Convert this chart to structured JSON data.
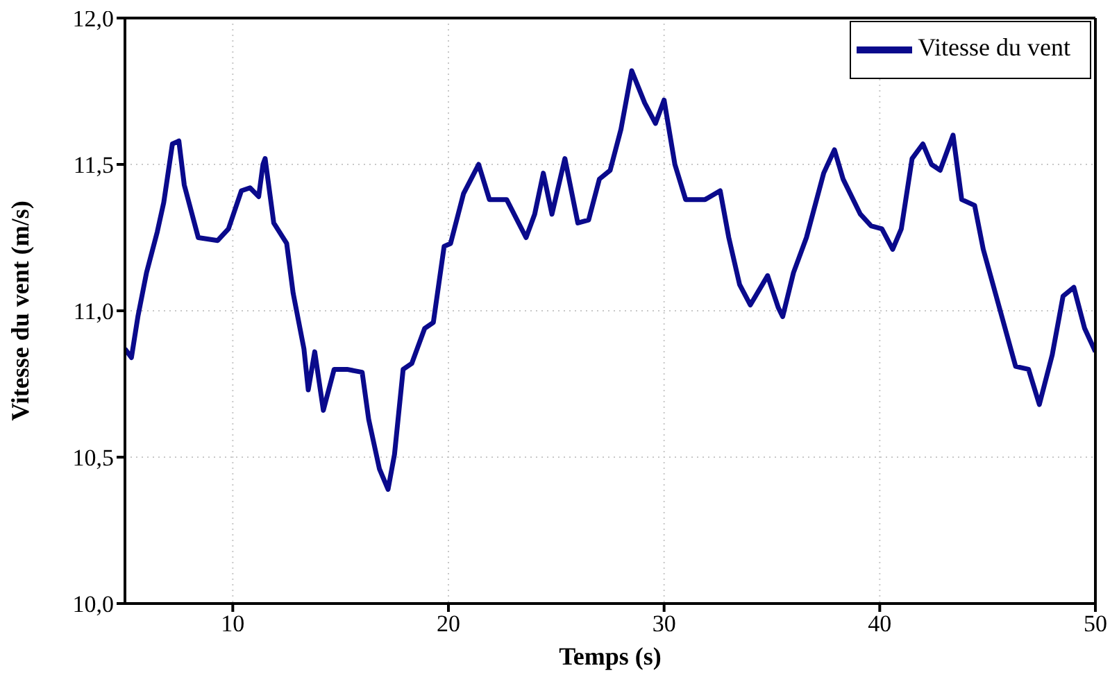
{
  "chart_data": {
    "type": "line",
    "xlabel": "Temps (s)",
    "ylabel": "Vitesse du vent (m/s)",
    "xlim": [
      5,
      50
    ],
    "xticks": [
      10,
      20,
      30,
      40,
      50
    ],
    "ylim": [
      10,
      12
    ],
    "yticks": [
      {
        "value": 10,
        "label": "10,0"
      },
      {
        "value": 10.5,
        "label": "10,5"
      },
      {
        "value": 11,
        "label": "11,0"
      },
      {
        "value": 11.5,
        "label": "11,5"
      },
      {
        "value": 12,
        "label": "12,0"
      }
    ],
    "grid": true,
    "legend": "top right",
    "marker": "none",
    "line_style": "solid",
    "x": [
      5.0,
      5.3,
      5.6,
      6.0,
      6.5,
      6.8,
      7.2,
      7.5,
      7.75,
      8.4,
      9.3,
      9.8,
      10.4,
      10.8,
      11.2,
      11.4,
      11.5,
      11.9,
      12.5,
      12.8,
      13.3,
      13.5,
      13.8,
      14.2,
      14.7,
      15.3,
      16.0,
      16.3,
      16.8,
      17.2,
      17.5,
      17.9,
      18.3,
      18.9,
      19.3,
      19.8,
      20.1,
      20.7,
      21.4,
      21.9,
      22.7,
      23.6,
      24.0,
      24.4,
      24.8,
      25.4,
      26.0,
      26.5,
      27.0,
      27.5,
      28.0,
      28.5,
      29.1,
      29.6,
      30.0,
      30.5,
      31.0,
      31.9,
      32.6,
      33.0,
      33.5,
      34.0,
      34.8,
      35.3,
      35.5,
      36.0,
      36.6,
      37.4,
      37.9,
      38.3,
      39.1,
      39.6,
      40.1,
      40.6,
      41.0,
      41.5,
      42.0,
      42.4,
      42.8,
      43.4,
      43.8,
      44.4,
      44.8,
      45.4,
      46.3,
      46.9,
      47.4,
      48.0,
      48.5,
      49.0,
      49.5,
      50.0
    ],
    "series": [
      {
        "name": "Vitesse du vent",
        "color": "#0a0a8c",
        "values": [
          10.87,
          10.84,
          10.98,
          11.13,
          11.27,
          11.37,
          11.57,
          11.58,
          11.43,
          11.25,
          11.24,
          11.28,
          11.41,
          11.42,
          11.39,
          11.5,
          11.52,
          11.3,
          11.23,
          11.06,
          10.87,
          10.73,
          10.86,
          10.66,
          10.8,
          10.8,
          10.79,
          10.63,
          10.46,
          10.39,
          10.51,
          10.8,
          10.82,
          10.94,
          10.96,
          11.22,
          11.23,
          11.4,
          11.5,
          11.38,
          11.38,
          11.25,
          11.33,
          11.47,
          11.33,
          11.52,
          11.3,
          11.31,
          11.45,
          11.48,
          11.62,
          11.82,
          11.71,
          11.64,
          11.72,
          11.5,
          11.38,
          11.38,
          11.41,
          11.25,
          11.09,
          11.02,
          11.12,
          11.01,
          10.98,
          11.13,
          11.25,
          11.47,
          11.55,
          11.45,
          11.33,
          11.29,
          11.28,
          11.21,
          11.28,
          11.52,
          11.57,
          11.5,
          11.48,
          11.6,
          11.38,
          11.36,
          11.21,
          11.05,
          10.81,
          10.8,
          10.68,
          10.85,
          11.05,
          11.08,
          10.94,
          10.86
        ]
      }
    ]
  }
}
